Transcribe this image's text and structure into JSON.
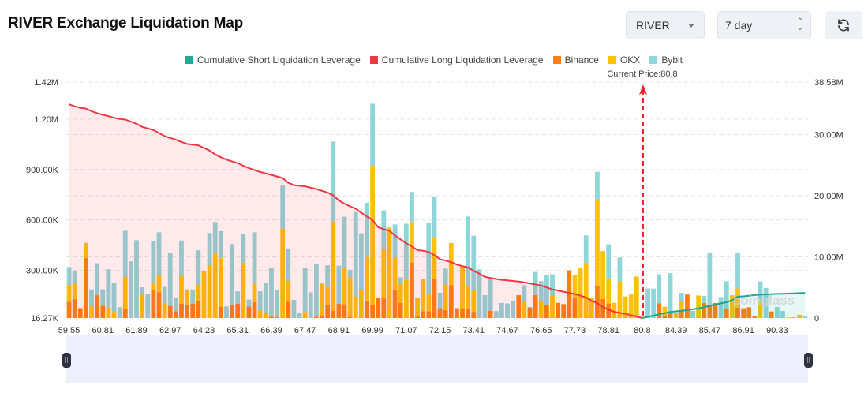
{
  "header": {
    "title": "RIVER Exchange Liquidation Map",
    "symbol_select": "RIVER",
    "range_select": "7 day",
    "refresh_icon": "refresh-icon"
  },
  "legend": [
    {
      "label": "Cumulative Short Liquidation Leverage",
      "color": "#22ab94"
    },
    {
      "label": "Cumulative Long Liquidation Leverage",
      "color": "#f23645"
    },
    {
      "label": "Binance",
      "color": "#fb8011"
    },
    {
      "label": "OKX",
      "color": "#fcc10a"
    },
    {
      "label": "Bybit",
      "color": "#8ed6d9"
    }
  ],
  "current_price_label": "Current Price:80.8",
  "watermark": "coinglass",
  "chart_data": {
    "type": "bar",
    "stacked": true,
    "x_tick_labels": [
      "59.55",
      "60.81",
      "61.89",
      "62.97",
      "64.23",
      "65.31",
      "66.39",
      "67.47",
      "68.91",
      "69.99",
      "71.07",
      "72.15",
      "73.41",
      "74.67",
      "76.65",
      "77.73",
      "78.81",
      "80.8",
      "84.39",
      "85.47",
      "86.91",
      "90.33"
    ],
    "x_tick_every": 6,
    "current_price": "80.8",
    "left_axis": {
      "ticks": [
        "1.42M",
        "1.20M",
        "900.00K",
        "600.00K",
        "300.00K",
        "16.27K"
      ],
      "range_k": [
        16.27,
        1420
      ]
    },
    "right_axis": {
      "ticks": [
        "38.58M",
        "30.00M",
        "20.00M",
        "10.00M",
        "0"
      ],
      "range_m": [
        0,
        38.58
      ]
    },
    "grid": true,
    "legend_position": "top",
    "bar_units": "K",
    "series": [
      {
        "name": "Binance",
        "axis": "left",
        "values": [
          97,
          112,
          59,
          357,
          0,
          136,
          73,
          0,
          0,
          0,
          55,
          0,
          0,
          0,
          0,
          170,
          154,
          0,
          72,
          41,
          86,
          81,
          86,
          100,
          0,
          0,
          0,
          67,
          0,
          81,
          86,
          0,
          69,
          95,
          0,
          0,
          8,
          6,
          0,
          98,
          0,
          0,
          0,
          0,
          8,
          16,
          77,
          42,
          86,
          83,
          8,
          0,
          0,
          104,
          81,
          122,
          117,
          0,
          170,
          89,
          0,
          329,
          9,
          41,
          41,
          231,
          59,
          48,
          195,
          58,
          58,
          58,
          37,
          0,
          0,
          44,
          0,
          0,
          0,
          0,
          136,
          0,
          64,
          137,
          0,
          81,
          0,
          90,
          83,
          284,
          117,
          0,
          0,
          0,
          189,
          114,
          86,
          0,
          0,
          0,
          0,
          0,
          0,
          0,
          0,
          87,
          16,
          39,
          0,
          45,
          140,
          0,
          0,
          90,
          81,
          90,
          0,
          58,
          0,
          62,
          58,
          64,
          11,
          0,
          0,
          39,
          0,
          0,
          0,
          0,
          0,
          0
        ]
      },
      {
        "name": "OKX",
        "axis": "left",
        "values": [
          100,
          94,
          0,
          90,
          73,
          0,
          0,
          62,
          37,
          0,
          189,
          0,
          0,
          144,
          0,
          36,
          103,
          87,
          0,
          0,
          164,
          89,
          0,
          97,
          279,
          314,
          384,
          291,
          0,
          0,
          0,
          328,
          0,
          109,
          45,
          33,
          0,
          0,
          532,
          123,
          0,
          0,
          36,
          0,
          0,
          189,
          108,
          532,
          0,
          217,
          234,
          128,
          167,
          259,
          827,
          0,
          295,
          538,
          189,
          114,
          226,
          243,
          112,
          192,
          100,
          251,
          0,
          151,
          251,
          0,
          251,
          136,
          130,
          0,
          0,
          0,
          0,
          0,
          0,
          0,
          0,
          97,
          0,
          0,
          100,
          0,
          134,
          0,
          0,
          0,
          140,
          300,
          328,
          122,
          513,
          284,
          150,
          90,
          218,
          128,
          140,
          247,
          0,
          0,
          0,
          0,
          51,
          0,
          28,
          58,
          0,
          0,
          134,
          0,
          0,
          0,
          0,
          0,
          136,
          114,
          0,
          0,
          0,
          98,
          0,
          0,
          0,
          0,
          3,
          5,
          19,
          0
        ]
      },
      {
        "name": "Bybit",
        "axis": "left",
        "values": [
          106,
          75,
          0,
          0,
          97,
          190,
          98,
          228,
          173,
          64,
          275,
          337,
          463,
          39,
          145,
          251,
          253,
          98,
          317,
          81,
          211,
          0,
          84,
          206,
          0,
          192,
          187,
          159,
          69,
          359,
          73,
          172,
          41,
          306,
          114,
          178,
          290,
          158,
          256,
          193,
          108,
          33,
          264,
          153,
          313,
          0,
          128,
          476,
          225,
          303,
          45,
          502,
          337,
          323,
          367,
          0,
          229,
          0,
          198,
          39,
          335,
          178,
          0,
          0,
          427,
          242,
          92,
          95,
          0,
          0,
          0,
          410,
          323,
          290,
          136,
          198,
          41,
          90,
          87,
          103,
          0,
          98,
          0,
          137,
          120,
          173,
          126,
          0,
          0,
          0,
          0,
          0,
          164,
          0,
          168,
          0,
          203,
          0,
          142,
          0,
          0,
          0,
          0,
          176,
          175,
          173,
          0,
          228,
          0,
          47,
          0,
          42,
          0,
          42,
          307,
          0,
          125,
          161,
          0,
          209,
          0,
          0,
          0,
          120,
          179,
          0,
          66,
          42,
          0,
          0,
          0,
          14
        ]
      },
      {
        "name": "Cumulative Long Liquidation Leverage",
        "type": "line",
        "axis": "right",
        "units": "M",
        "values": [
          34.94,
          34.6,
          34.38,
          34.25,
          33.82,
          33.5,
          33.22,
          33.0,
          32.75,
          32.54,
          32.45,
          32.1,
          31.76,
          31.25,
          31.0,
          30.74,
          30.25,
          29.75,
          29.45,
          29.15,
          28.8,
          28.46,
          28.35,
          28.25,
          27.8,
          27.39,
          26.75,
          26.3,
          25.89,
          25.6,
          25.33,
          24.9,
          24.5,
          24.2,
          23.88,
          23.65,
          23.41,
          23.15,
          22.89,
          22.12,
          21.73,
          21.63,
          21.54,
          21.3,
          21.09,
          20.8,
          20.51,
          20.06,
          19.23,
          18.71,
          18.26,
          17.88,
          17.23,
          16.59,
          16.01,
          14.85,
          14.53,
          14.27,
          13.5,
          12.86,
          12.22,
          11.7,
          11.1,
          11.0,
          10.8,
          10.29,
          9.61,
          9.39,
          9.13,
          8.74,
          8.49,
          8.27,
          7.72,
          7.27,
          6.75,
          6.56,
          6.39,
          6.24,
          6.15,
          6.06,
          5.98,
          5.82,
          5.66,
          5.5,
          5.31,
          5.0,
          4.69,
          4.5,
          4.31,
          4.1,
          3.92,
          3.65,
          3.37,
          2.79,
          2.44,
          1.8,
          1.35,
          1.03,
          0.84,
          0.71,
          0.45,
          0.26,
          0,
          null,
          null,
          null,
          null,
          null,
          null,
          null,
          null,
          null,
          null,
          null,
          null,
          null,
          null,
          null,
          null,
          null,
          null,
          null,
          null,
          null,
          null,
          null,
          null,
          null,
          null,
          null,
          null,
          null
        ]
      },
      {
        "name": "Cumulative Short Liquidation Leverage",
        "type": "line",
        "axis": "right",
        "units": "M",
        "values": [
          null,
          null,
          null,
          null,
          null,
          null,
          null,
          null,
          null,
          null,
          null,
          null,
          null,
          null,
          null,
          null,
          null,
          null,
          null,
          null,
          null,
          null,
          null,
          null,
          null,
          null,
          null,
          null,
          null,
          null,
          null,
          null,
          null,
          null,
          null,
          null,
          null,
          null,
          null,
          null,
          null,
          null,
          null,
          null,
          null,
          null,
          null,
          null,
          null,
          null,
          null,
          null,
          null,
          null,
          null,
          null,
          null,
          null,
          null,
          null,
          null,
          null,
          null,
          null,
          null,
          null,
          null,
          null,
          null,
          null,
          null,
          null,
          null,
          null,
          null,
          null,
          null,
          null,
          null,
          null,
          null,
          null,
          null,
          null,
          null,
          null,
          null,
          null,
          null,
          null,
          null,
          null,
          null,
          null,
          null,
          null,
          null,
          null,
          null,
          null,
          null,
          null,
          0,
          0.2,
          0.4,
          0.6,
          0.8,
          1.0,
          1.1,
          1.2,
          1.3,
          1.45,
          1.55,
          1.8,
          2.0,
          2.2,
          2.4,
          2.6,
          2.9,
          3.5,
          3.55,
          3.65,
          3.75,
          3.82,
          3.87,
          3.9,
          3.95,
          3.98,
          4.0,
          4.04,
          4.08,
          4.1
        ]
      }
    ]
  }
}
